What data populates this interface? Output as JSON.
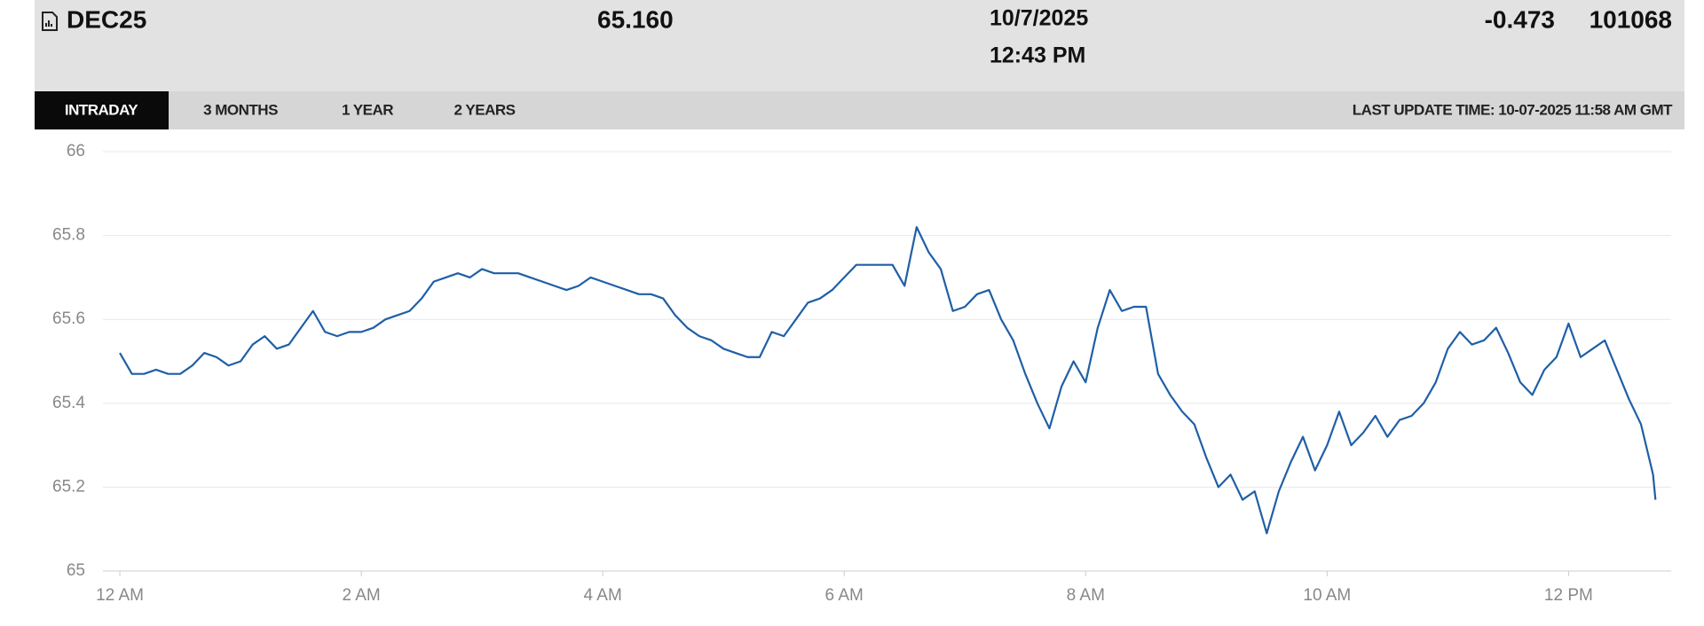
{
  "header": {
    "symbol": "DEC25",
    "last": "65.160",
    "date": "10/7/2025",
    "time": "12:43 PM",
    "change": "-0.473",
    "volume": "101068"
  },
  "tabs": [
    "INTRADAY",
    "3 MONTHS",
    "1 YEAR",
    "2 YEARS"
  ],
  "last_update": "LAST UPDATE TIME: 10-07-2025 11:58 AM GMT",
  "chart_data": {
    "type": "line",
    "x": [
      0,
      0.1,
      0.2,
      0.3,
      0.4,
      0.5,
      0.6,
      0.7,
      0.8,
      0.9,
      1,
      1.1,
      1.2,
      1.3,
      1.4,
      1.5,
      1.6,
      1.7,
      1.8,
      1.9,
      2,
      2.1,
      2.2,
      2.3,
      2.4,
      2.5,
      2.6,
      2.7,
      2.8,
      2.9,
      3,
      3.1,
      3.2,
      3.3,
      3.4,
      3.5,
      3.6,
      3.7,
      3.8,
      3.9,
      4,
      4.1,
      4.2,
      4.3,
      4.4,
      4.5,
      4.6,
      4.7,
      4.8,
      4.9,
      5,
      5.1,
      5.2,
      5.3,
      5.4,
      5.5,
      5.6,
      5.7,
      5.8,
      5.9,
      6,
      6.1,
      6.2,
      6.3,
      6.4,
      6.5,
      6.6,
      6.7,
      6.8,
      6.9,
      7,
      7.1,
      7.2,
      7.3,
      7.4,
      7.5,
      7.6,
      7.7,
      7.8,
      7.9,
      8,
      8.1,
      8.2,
      8.3,
      8.4,
      8.5,
      8.6,
      8.7,
      8.8,
      8.9,
      9,
      9.1,
      9.2,
      9.3,
      9.4,
      9.5,
      9.6,
      9.7,
      9.8,
      9.9,
      10,
      10.1,
      10.2,
      10.3,
      10.4,
      10.5,
      10.6,
      10.7,
      10.8,
      10.9,
      11,
      11.1,
      11.2,
      11.3,
      11.4,
      11.5,
      11.6,
      11.7,
      11.8,
      11.9,
      12,
      12.1,
      12.2,
      12.3,
      12.4,
      12.5,
      12.6,
      12.7,
      12.72
    ],
    "series": [
      {
        "color": "#1f5fa6",
        "values": [
          65.52,
          65.47,
          65.47,
          65.48,
          65.47,
          65.47,
          65.49,
          65.52,
          65.51,
          65.49,
          65.5,
          65.54,
          65.56,
          65.53,
          65.54,
          65.58,
          65.62,
          65.57,
          65.56,
          65.57,
          65.57,
          65.58,
          65.6,
          65.61,
          65.62,
          65.65,
          65.69,
          65.7,
          65.71,
          65.7,
          65.72,
          65.71,
          65.71,
          65.71,
          65.7,
          65.69,
          65.68,
          65.67,
          65.68,
          65.7,
          65.69,
          65.68,
          65.67,
          65.66,
          65.66,
          65.65,
          65.61,
          65.58,
          65.56,
          65.55,
          65.53,
          65.52,
          65.51,
          65.51,
          65.57,
          65.56,
          65.6,
          65.64,
          65.65,
          65.67,
          65.7,
          65.73,
          65.73,
          65.73,
          65.73,
          65.68,
          65.82,
          65.76,
          65.72,
          65.62,
          65.63,
          65.66,
          65.67,
          65.6,
          65.55,
          65.47,
          65.4,
          65.34,
          65.44,
          65.5,
          65.45,
          65.58,
          65.67,
          65.62,
          65.63,
          65.63,
          65.47,
          65.42,
          65.38,
          65.35,
          65.27,
          65.2,
          65.23,
          65.17,
          65.19,
          65.09,
          65.19,
          65.26,
          65.32,
          65.24,
          65.3,
          65.38,
          65.3,
          65.33,
          65.37,
          65.32,
          65.36,
          65.37,
          65.4,
          65.45,
          65.53,
          65.57,
          65.54,
          65.55,
          65.58,
          65.52,
          65.45,
          65.42,
          65.48,
          65.51,
          65.59,
          65.51,
          65.53,
          65.55,
          65.48,
          65.41,
          65.35,
          65.23,
          65.17
        ]
      }
    ],
    "xlim": [
      -0.14,
      12.85
    ],
    "xticks": [
      {
        "value": 0,
        "label": "12 AM"
      },
      {
        "value": 2,
        "label": "2 AM"
      },
      {
        "value": 4,
        "label": "4 AM"
      },
      {
        "value": 6,
        "label": "6 AM"
      },
      {
        "value": 8,
        "label": "8 AM"
      },
      {
        "value": 10,
        "label": "10 AM"
      },
      {
        "value": 12,
        "label": "12 PM"
      }
    ],
    "ylim": [
      65,
      66
    ],
    "yticks": [
      65,
      65.2,
      65.4,
      65.6,
      65.8,
      66
    ],
    "grid": true
  }
}
